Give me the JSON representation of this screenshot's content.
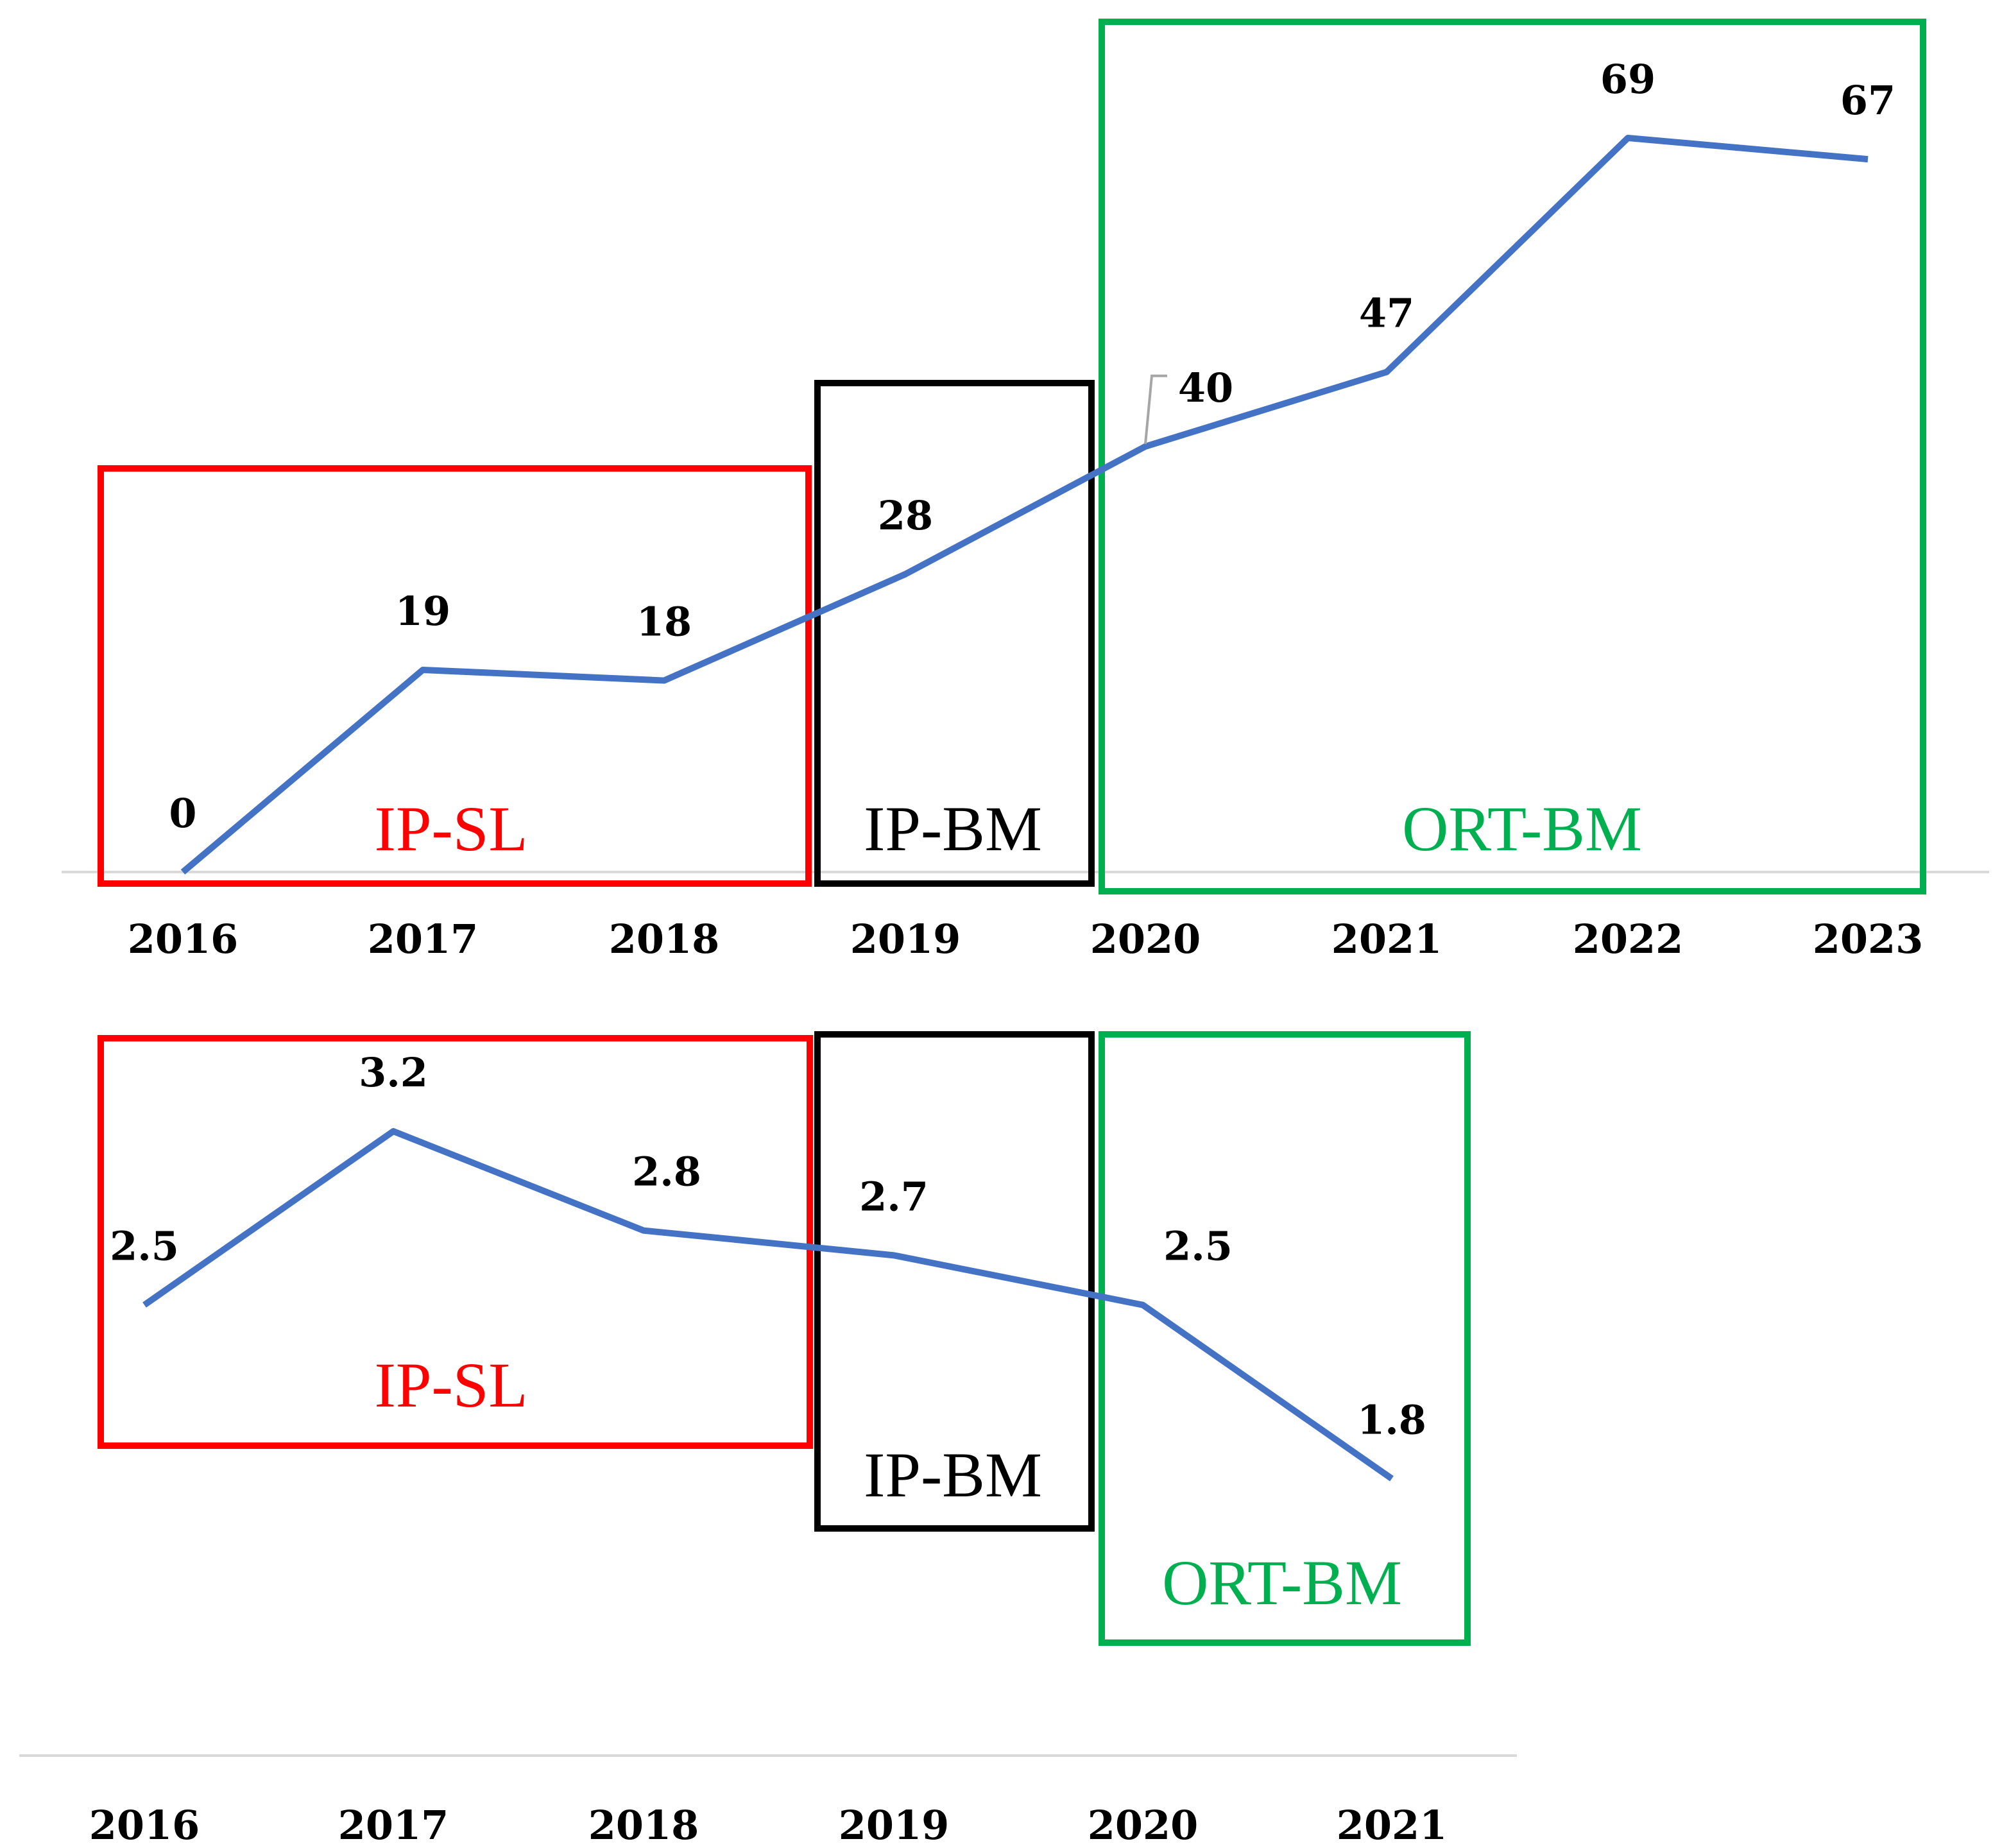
{
  "chart_data": [
    {
      "type": "line",
      "title": "",
      "xlabel": "",
      "ylabel": "",
      "categories": [
        "2016",
        "2017",
        "2018",
        "2019",
        "2020",
        "2021",
        "2022",
        "2023"
      ],
      "values": [
        0,
        19,
        18,
        28,
        40,
        47,
        69,
        67
      ],
      "data_labels": [
        "0",
        "19",
        "18",
        "28",
        "40",
        "47",
        "69",
        "67"
      ],
      "series_color": "#4472C4",
      "ylim": [
        0,
        69
      ],
      "grid": false,
      "annotations": [
        {
          "label": "IP-SL",
          "years": [
            "2016",
            "2018"
          ],
          "color": "#FF0000"
        },
        {
          "label": "IP-BM",
          "years": [
            "2019",
            "2019"
          ],
          "color": "#000000"
        },
        {
          "label": "ORT-BM",
          "years": [
            "2020",
            "2023"
          ],
          "color": "#00B050"
        }
      ]
    },
    {
      "type": "line",
      "title": "",
      "xlabel": "",
      "ylabel": "",
      "categories": [
        "2016",
        "2017",
        "2018",
        "2019",
        "2020",
        "2021"
      ],
      "values": [
        2.5,
        3.2,
        2.8,
        2.7,
        2.5,
        1.8
      ],
      "data_labels": [
        "2.5",
        "3.2",
        "2.8",
        "2.7",
        "2.5",
        "1.8"
      ],
      "series_color": "#4472C4",
      "ylim": [
        1.8,
        3.2
      ],
      "grid": false,
      "annotations": [
        {
          "label": "IP-SL",
          "years": [
            "2016",
            "2018"
          ],
          "color": "#FF0000"
        },
        {
          "label": "IP-BM",
          "years": [
            "2019",
            "2019"
          ],
          "color": "#000000"
        },
        {
          "label": "ORT-BM",
          "years": [
            "2020",
            "2021"
          ],
          "color": "#00B050"
        }
      ]
    }
  ]
}
